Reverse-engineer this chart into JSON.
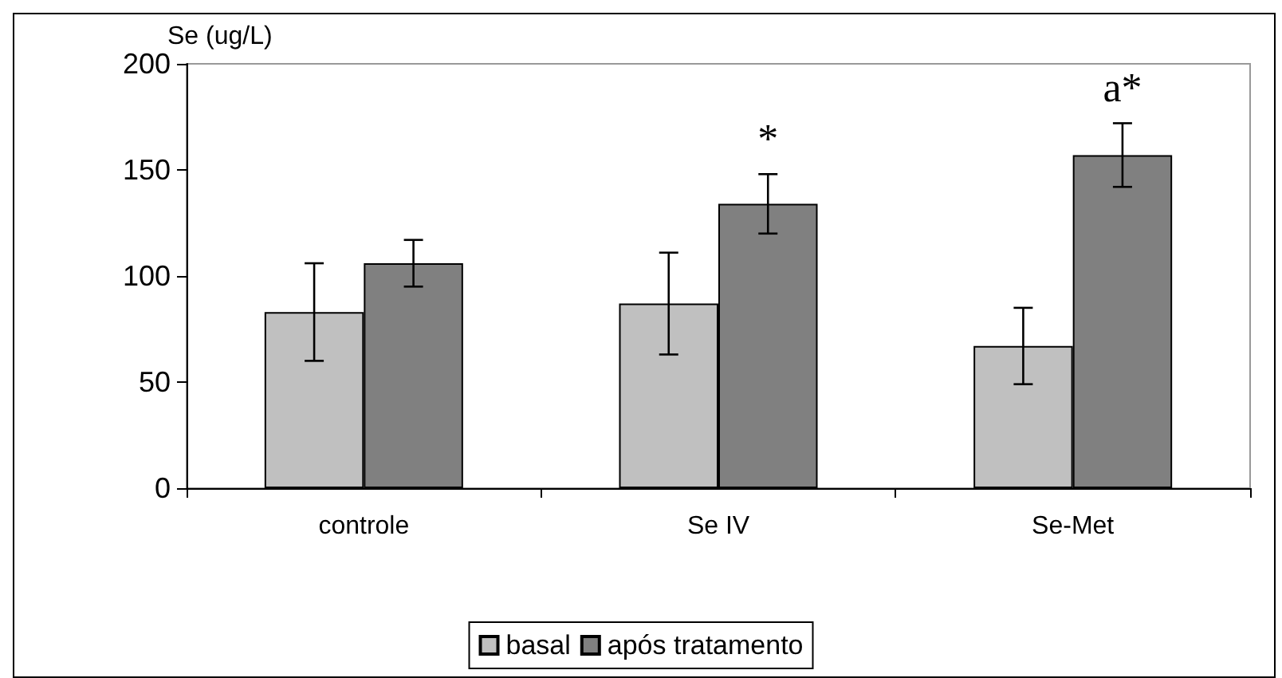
{
  "chart_data": {
    "type": "bar",
    "ylabel": "Se (ug/L)",
    "categories": [
      "controle",
      "Se IV",
      "Se-Met"
    ],
    "series": [
      {
        "name": "basal",
        "color": "#c0c0c0",
        "values": [
          83,
          87,
          67
        ],
        "errors": [
          23,
          24,
          18
        ]
      },
      {
        "name": "após tratamento",
        "color": "#808080",
        "values": [
          106,
          134,
          157
        ],
        "errors": [
          11,
          14,
          15
        ]
      }
    ],
    "ylim": [
      0,
      200
    ],
    "yticks": [
      0,
      50,
      100,
      150,
      200
    ],
    "grid": false,
    "legend": "bottom",
    "annotations": [
      "*",
      "a*"
    ]
  }
}
